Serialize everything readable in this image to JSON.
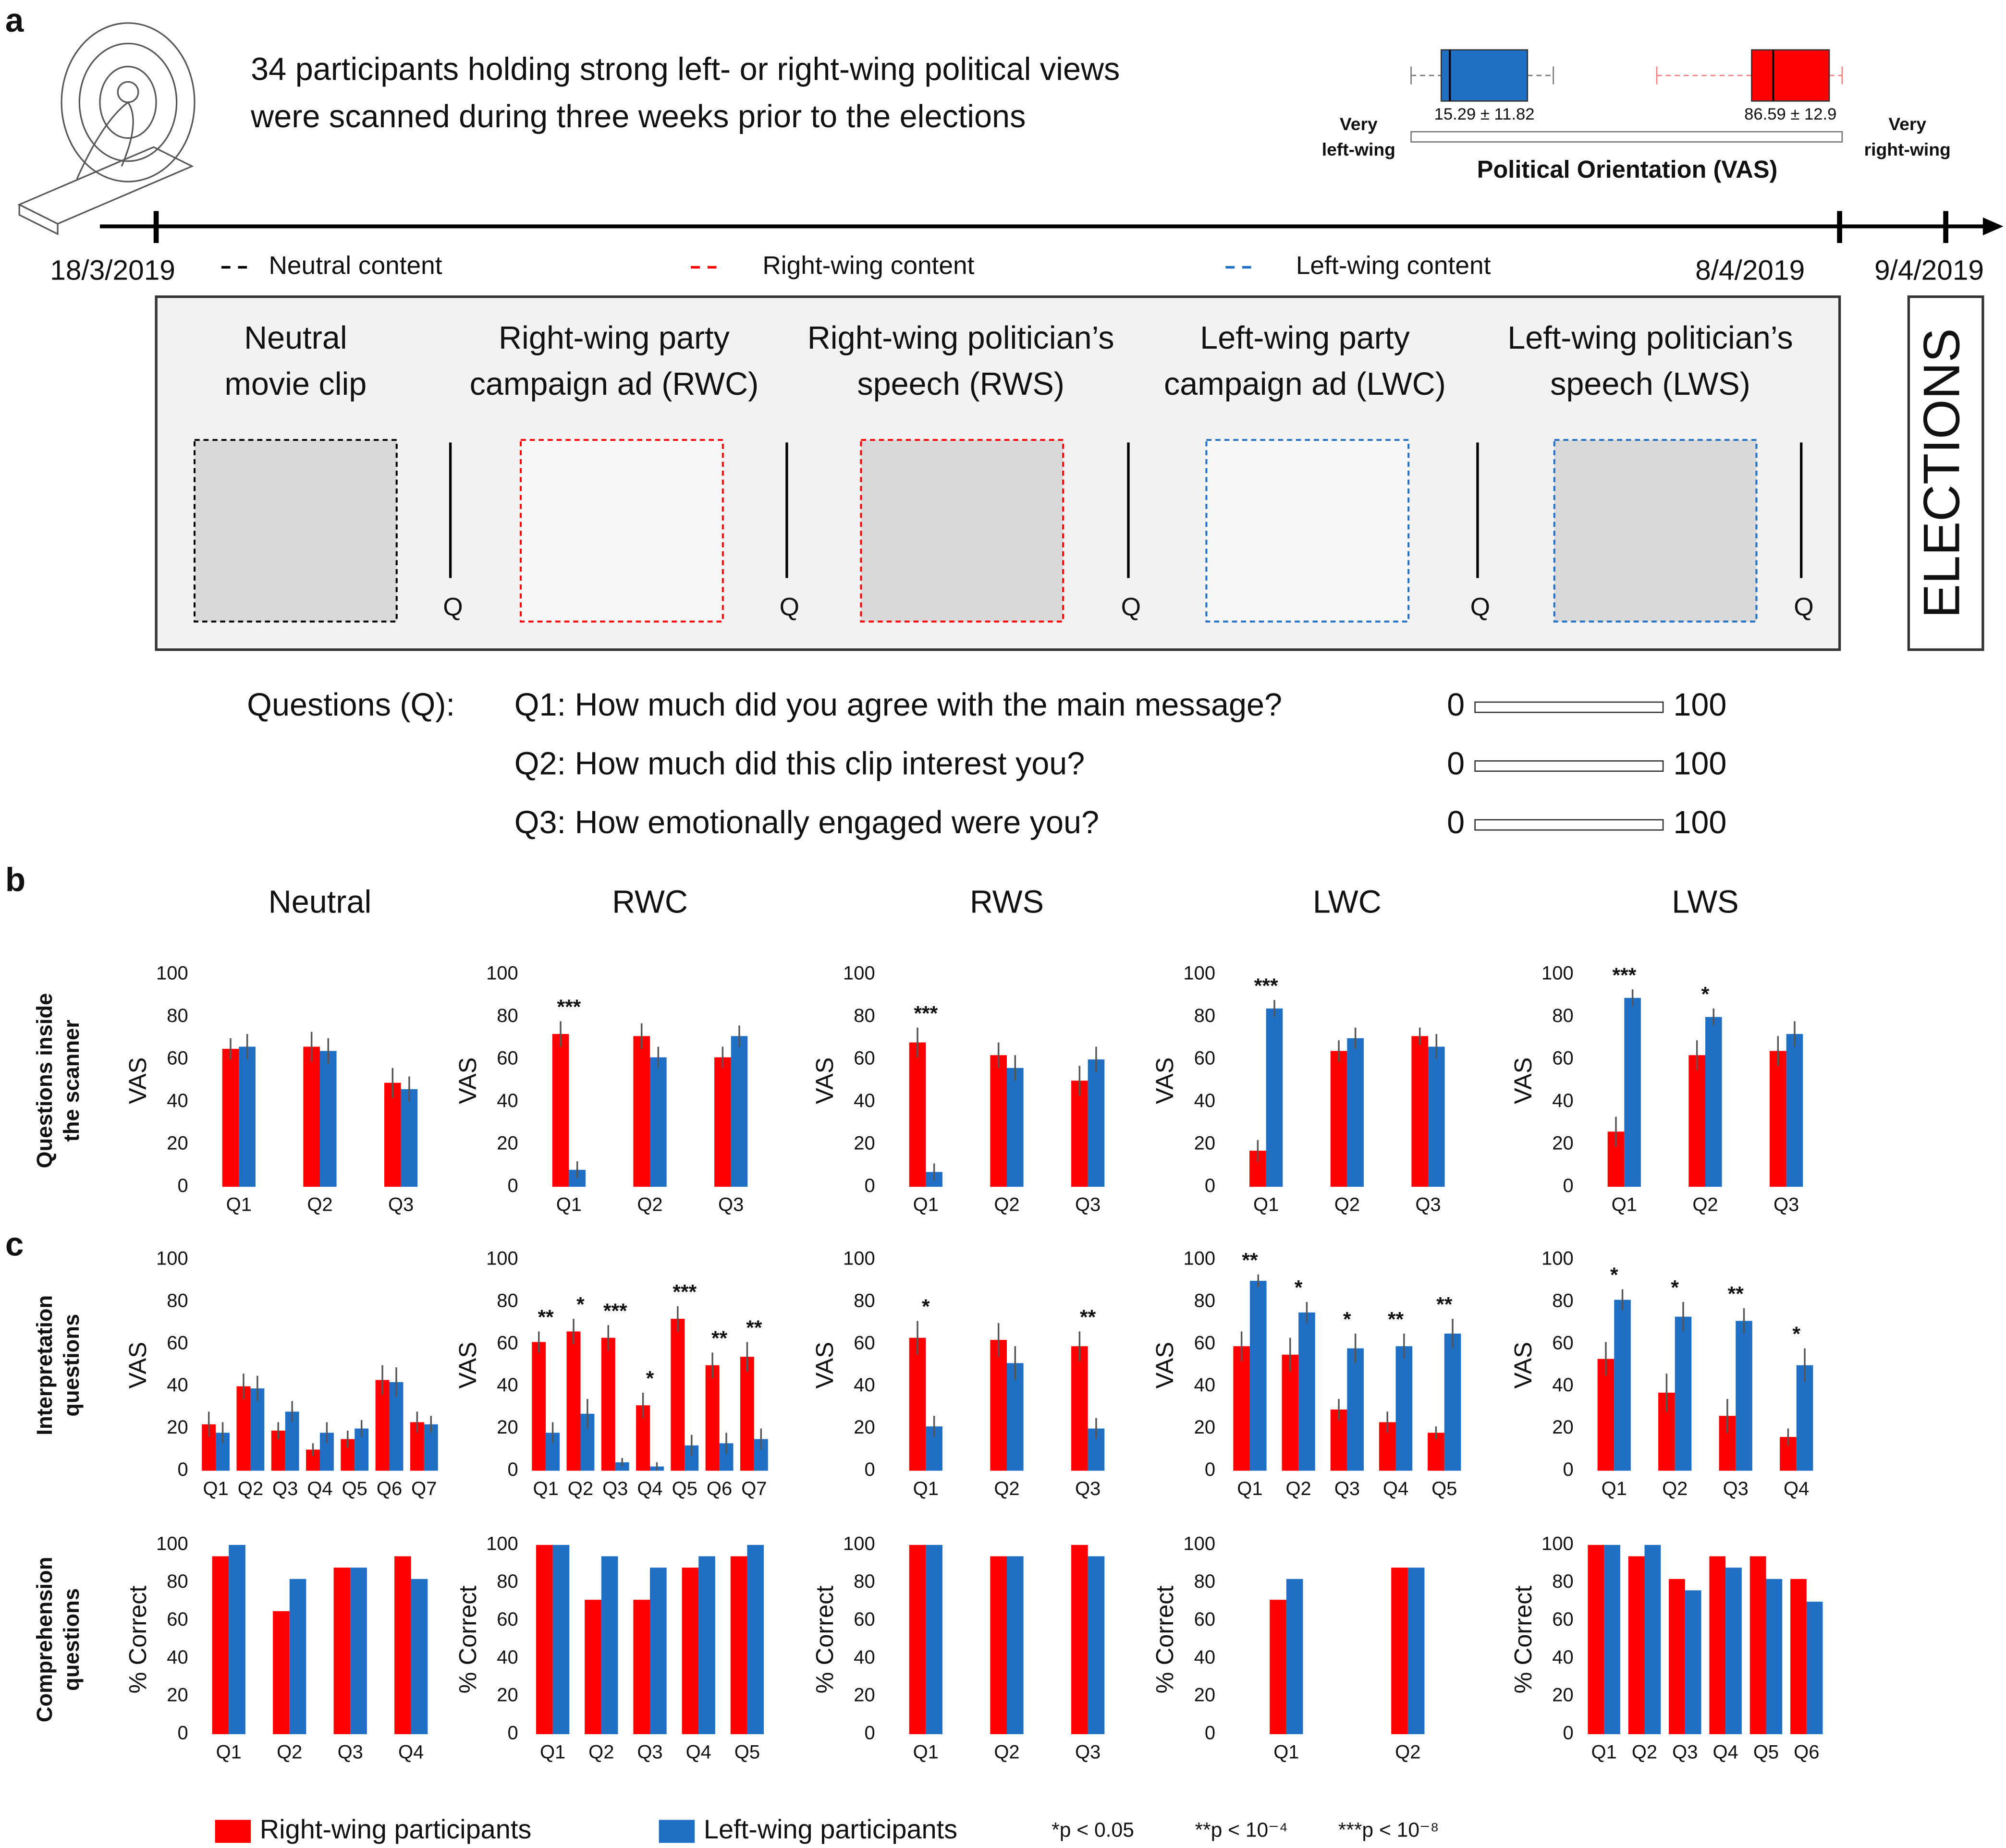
{
  "panel_labels": [
    "a",
    "b",
    "c"
  ],
  "intro": [
    "34 participants holding strong left- or right-wing political views",
    "were scanned during three weeks prior to the elections"
  ],
  "orientation": {
    "title": "Political Orientation (VAS)",
    "left": [
      "Very",
      "left-wing"
    ],
    "right": [
      "Very",
      "right-wing"
    ],
    "xlim": [
      0,
      100
    ],
    "boxes": [
      {
        "label": "15.29 ± 11.82",
        "color": "#1f6fc5",
        "whisker_color": "#777777",
        "whiskers": [
          0,
          33
        ],
        "box": [
          7,
          27
        ],
        "median": 9
      },
      {
        "label": "86.59 ± 12.9",
        "color": "#ff0000",
        "whisker_color": "#f08080",
        "whiskers": [
          57,
          100
        ],
        "box": [
          79,
          97
        ],
        "median": 84
      }
    ]
  },
  "timeline": {
    "dates": [
      "18/3/2019",
      "8/4/2019",
      "9/4/2019"
    ],
    "end_label": "ELECTIONS"
  },
  "content_legend": [
    {
      "label": "Neutral content",
      "color": "#000000"
    },
    {
      "label": "Right-wing content",
      "color": "#ff0000"
    },
    {
      "label": "Left-wing content",
      "color": "#1f6fc5"
    }
  ],
  "stimuli": [
    {
      "title": [
        "Neutral",
        "movie clip"
      ],
      "color": "#000000"
    },
    {
      "title": [
        "Right-wing party",
        "campaign ad (RWC)"
      ],
      "color": "#ff0000"
    },
    {
      "title": [
        "Right-wing politician’s",
        "speech (RWS)"
      ],
      "color": "#ff0000"
    },
    {
      "title": [
        "Left-wing party",
        "campaign ad (LWC)"
      ],
      "color": "#1f6fc5"
    },
    {
      "title": [
        "Left-wing politician’s",
        "speech (LWS)"
      ],
      "color": "#1f6fc5"
    }
  ],
  "q_marker": "Q",
  "questions": {
    "label": "Questions (Q):",
    "items": [
      "Q1: How much did you agree with the main message?",
      "Q2: How much did this clip interest you?",
      "Q3: How emotionally engaged were you?"
    ],
    "scale": [
      0,
      100
    ]
  },
  "columns": [
    "Neutral",
    "RWC",
    "RWS",
    "LWC",
    "LWS"
  ],
  "rows": [
    [
      "Questions inside",
      "the scanner"
    ],
    [
      "Interpretation",
      "questions"
    ],
    [
      "Comprehension",
      "questions"
    ]
  ],
  "legend": [
    {
      "name": "Right-wing participants",
      "color": "#ff0000"
    },
    {
      "name": "Left-wing participants",
      "color": "#1f6fc5"
    }
  ],
  "significance": [
    "*p < 0.05",
    "**p < 10⁻⁴",
    "***p < 10⁻⁸"
  ],
  "chart_data": [
    {
      "type": "bar",
      "ylabel": "VAS",
      "categories": [
        "Q1",
        "Q2",
        "Q3"
      ],
      "ylim": [
        0,
        100
      ],
      "yticks": [
        0,
        20,
        40,
        60,
        80,
        100
      ],
      "series": [
        {
          "values": [
            65,
            66,
            49
          ],
          "errors": [
            5,
            7,
            7
          ]
        },
        {
          "values": [
            66,
            64,
            46
          ],
          "errors": [
            6,
            6,
            6
          ]
        }
      ],
      "annotations": [
        null,
        null,
        null
      ]
    },
    {
      "type": "bar",
      "ylabel": "VAS",
      "categories": [
        "Q1",
        "Q2",
        "Q3"
      ],
      "ylim": [
        0,
        100
      ],
      "yticks": [
        0,
        20,
        40,
        60,
        80,
        100
      ],
      "series": [
        {
          "values": [
            72,
            71,
            61
          ],
          "errors": [
            6,
            6,
            5
          ]
        },
        {
          "values": [
            8,
            61,
            71
          ],
          "errors": [
            4,
            5,
            5
          ]
        }
      ],
      "annotations": [
        "***",
        null,
        null
      ]
    },
    {
      "type": "bar",
      "ylabel": "VAS",
      "categories": [
        "Q1",
        "Q2",
        "Q3"
      ],
      "ylim": [
        0,
        100
      ],
      "yticks": [
        0,
        20,
        40,
        60,
        80,
        100
      ],
      "series": [
        {
          "values": [
            68,
            62,
            50
          ],
          "errors": [
            7,
            6,
            7
          ]
        },
        {
          "values": [
            7,
            56,
            60
          ],
          "errors": [
            4,
            6,
            6
          ]
        }
      ],
      "annotations": [
        "***",
        null,
        null
      ]
    },
    {
      "type": "bar",
      "ylabel": "VAS",
      "categories": [
        "Q1",
        "Q2",
        "Q3"
      ],
      "ylim": [
        0,
        100
      ],
      "yticks": [
        0,
        20,
        40,
        60,
        80,
        100
      ],
      "series": [
        {
          "values": [
            17,
            64,
            71
          ],
          "errors": [
            5,
            5,
            4
          ]
        },
        {
          "values": [
            84,
            70,
            66
          ],
          "errors": [
            4,
            5,
            6
          ]
        }
      ],
      "annotations": [
        "***",
        null,
        null
      ]
    },
    {
      "type": "bar",
      "ylabel": "VAS",
      "categories": [
        "Q1",
        "Q2",
        "Q3"
      ],
      "ylim": [
        0,
        100
      ],
      "yticks": [
        0,
        20,
        40,
        60,
        80,
        100
      ],
      "series": [
        {
          "values": [
            26,
            62,
            64
          ],
          "errors": [
            7,
            7,
            7
          ]
        },
        {
          "values": [
            89,
            80,
            72
          ],
          "errors": [
            4,
            4,
            6
          ]
        }
      ],
      "annotations": [
        "***",
        "*",
        null
      ]
    },
    {
      "type": "bar",
      "ylabel": "VAS",
      "categories": [
        "Q1",
        "Q2",
        "Q3",
        "Q4",
        "Q5",
        "Q6",
        "Q7"
      ],
      "ylim": [
        0,
        100
      ],
      "yticks": [
        0,
        20,
        40,
        60,
        80,
        100
      ],
      "series": [
        {
          "values": [
            22,
            40,
            19,
            10,
            15,
            43,
            23
          ],
          "errors": [
            6,
            6,
            4,
            3,
            4,
            7,
            5
          ]
        },
        {
          "values": [
            18,
            39,
            28,
            18,
            20,
            42,
            22
          ],
          "errors": [
            5,
            6,
            5,
            5,
            4,
            7,
            4
          ]
        }
      ],
      "annotations": [
        null,
        null,
        null,
        null,
        null,
        null,
        null
      ]
    },
    {
      "type": "bar",
      "ylabel": "VAS",
      "categories": [
        "Q1",
        "Q2",
        "Q3",
        "Q4",
        "Q5",
        "Q6",
        "Q7"
      ],
      "ylim": [
        0,
        100
      ],
      "yticks": [
        0,
        20,
        40,
        60,
        80,
        100
      ],
      "series": [
        {
          "values": [
            61,
            66,
            63,
            31,
            72,
            50,
            54
          ],
          "errors": [
            5,
            6,
            6,
            6,
            6,
            6,
            7
          ]
        },
        {
          "values": [
            18,
            27,
            4,
            2,
            12,
            13,
            15
          ],
          "errors": [
            5,
            7,
            2,
            2,
            5,
            5,
            5
          ]
        }
      ],
      "annotations": [
        "**",
        "*",
        "***",
        "*",
        "***",
        "**",
        "**"
      ]
    },
    {
      "type": "bar",
      "ylabel": "VAS",
      "categories": [
        "Q1",
        "Q2",
        "Q3"
      ],
      "ylim": [
        0,
        100
      ],
      "yticks": [
        0,
        20,
        40,
        60,
        80,
        100
      ],
      "series": [
        {
          "values": [
            63,
            62,
            59
          ],
          "errors": [
            8,
            8,
            7
          ]
        },
        {
          "values": [
            21,
            51,
            20
          ],
          "errors": [
            5,
            8,
            5
          ]
        }
      ],
      "annotations": [
        "*",
        null,
        "**"
      ]
    },
    {
      "type": "bar",
      "ylabel": "VAS",
      "categories": [
        "Q1",
        "Q2",
        "Q3",
        "Q4",
        "Q5"
      ],
      "ylim": [
        0,
        100
      ],
      "yticks": [
        0,
        20,
        40,
        60,
        80,
        100
      ],
      "series": [
        {
          "values": [
            59,
            55,
            29,
            23,
            18
          ],
          "errors": [
            7,
            8,
            5,
            5,
            3
          ]
        },
        {
          "values": [
            90,
            75,
            58,
            59,
            65
          ],
          "errors": [
            3,
            5,
            7,
            6,
            7
          ]
        }
      ],
      "annotations": [
        "**",
        "*",
        "*",
        "**",
        "**"
      ]
    },
    {
      "type": "bar",
      "ylabel": "VAS",
      "categories": [
        "Q1",
        "Q2",
        "Q3",
        "Q4"
      ],
      "ylim": [
        0,
        100
      ],
      "yticks": [
        0,
        20,
        40,
        60,
        80,
        100
      ],
      "series": [
        {
          "values": [
            53,
            37,
            26,
            16
          ],
          "errors": [
            8,
            9,
            8,
            4
          ]
        },
        {
          "values": [
            81,
            73,
            71,
            50
          ],
          "errors": [
            5,
            7,
            6,
            8
          ]
        }
      ],
      "annotations": [
        "*",
        "*",
        "**",
        "*"
      ]
    },
    {
      "type": "bar",
      "ylabel": "% Correct",
      "categories": [
        "Q1",
        "Q2",
        "Q3",
        "Q4"
      ],
      "ylim": [
        0,
        100
      ],
      "yticks": [
        0,
        20,
        40,
        60,
        80,
        100
      ],
      "series": [
        {
          "values": [
            94,
            65,
            88,
            94
          ]
        },
        {
          "values": [
            100,
            82,
            88,
            82
          ]
        }
      ]
    },
    {
      "type": "bar",
      "ylabel": "% Correct",
      "categories": [
        "Q1",
        "Q2",
        "Q3",
        "Q4",
        "Q5"
      ],
      "ylim": [
        0,
        100
      ],
      "yticks": [
        0,
        20,
        40,
        60,
        80,
        100
      ],
      "series": [
        {
          "values": [
            100,
            71,
            71,
            88,
            94
          ]
        },
        {
          "values": [
            100,
            94,
            88,
            94,
            100
          ]
        }
      ]
    },
    {
      "type": "bar",
      "ylabel": "% Correct",
      "categories": [
        "Q1",
        "Q2",
        "Q3"
      ],
      "ylim": [
        0,
        100
      ],
      "yticks": [
        0,
        20,
        40,
        60,
        80,
        100
      ],
      "series": [
        {
          "values": [
            100,
            94,
            100
          ]
        },
        {
          "values": [
            100,
            94,
            94
          ]
        }
      ]
    },
    {
      "type": "bar",
      "ylabel": "% Correct",
      "categories": [
        "Q1",
        "Q2"
      ],
      "ylim": [
        0,
        100
      ],
      "yticks": [
        0,
        20,
        40,
        60,
        80,
        100
      ],
      "series": [
        {
          "values": [
            71,
            88
          ]
        },
        {
          "values": [
            82,
            88
          ]
        }
      ]
    },
    {
      "type": "bar",
      "ylabel": "% Correct",
      "categories": [
        "Q1",
        "Q2",
        "Q3",
        "Q4",
        "Q5",
        "Q6"
      ],
      "ylim": [
        0,
        100
      ],
      "yticks": [
        0,
        20,
        40,
        60,
        80,
        100
      ],
      "series": [
        {
          "values": [
            100,
            94,
            82,
            94,
            94,
            82
          ]
        },
        {
          "values": [
            100,
            100,
            76,
            88,
            82,
            70
          ]
        }
      ]
    }
  ]
}
